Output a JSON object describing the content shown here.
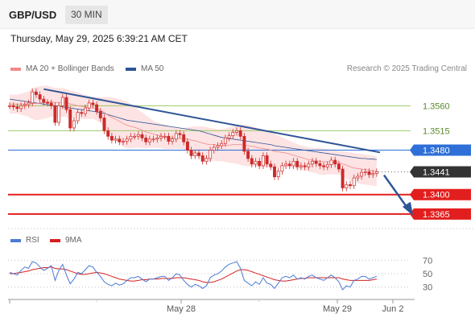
{
  "header": {
    "pair": "GBP/USD",
    "timeframe": "30 MIN",
    "datetime": "Thursday, May 29, 2025 6:39:21 AM CET",
    "copyright": "Research © 2025 Trading Central"
  },
  "legend": {
    "ma20": "MA 20 + Bollinger Bands",
    "ma50": "MA 50",
    "rsi": "RSI",
    "ma9": "9MA"
  },
  "colors": {
    "ma20": "#f08a8a",
    "ma50": "#2f5597",
    "bollinger_fill": "#fde3e3",
    "candle": "#cc2a2a",
    "resistance": "#99cc66",
    "pivot": "#2e6fd8",
    "support": "#e31e1e",
    "trendline": "#2f5597",
    "rsi": "#4a7bd6",
    "rsi_ma": "#d42020"
  },
  "chart_data": [
    {
      "type": "line",
      "title": "GBP/USD 30 MIN",
      "x_labels": [
        "May 28",
        "May 29",
        "Jun 2"
      ],
      "y_range": [
        1.333,
        1.362
      ],
      "last_price": 1.3441,
      "levels": [
        {
          "value": 1.356,
          "label": "1.3560",
          "kind": "resistance"
        },
        {
          "value": 1.3515,
          "label": "1.3515",
          "kind": "resistance"
        },
        {
          "value": 1.348,
          "label": "1.3480",
          "kind": "pivot"
        },
        {
          "value": 1.3441,
          "label": "1.3441",
          "kind": "last"
        },
        {
          "value": 1.34,
          "label": "1.3400",
          "kind": "support"
        },
        {
          "value": 1.3365,
          "label": "1.3365",
          "kind": "support"
        }
      ],
      "close": [
        1.356,
        1.3558,
        1.3555,
        1.356,
        1.3562,
        1.3565,
        1.3585,
        1.358,
        1.3572,
        1.3566,
        1.3565,
        1.356,
        1.353,
        1.356,
        1.3575,
        1.3553,
        1.352,
        1.3533,
        1.3548,
        1.3546,
        1.3556,
        1.3565,
        1.3562,
        1.355,
        1.3538,
        1.3515,
        1.3505,
        1.3498,
        1.35,
        1.3495,
        1.3496,
        1.35,
        1.3505,
        1.3505,
        1.3508,
        1.3502,
        1.3495,
        1.35,
        1.35,
        1.3502,
        1.3505,
        1.3505,
        1.3496,
        1.35,
        1.351,
        1.3508,
        1.3495,
        1.348,
        1.347,
        1.3475,
        1.347,
        1.346,
        1.3465,
        1.348,
        1.3485,
        1.3488,
        1.3492,
        1.3502,
        1.3506,
        1.3512,
        1.3515,
        1.3505,
        1.3478,
        1.3465,
        1.3455,
        1.346,
        1.3452,
        1.347,
        1.3455,
        1.345,
        1.3432,
        1.3442,
        1.3452,
        1.3455,
        1.3452,
        1.346,
        1.345,
        1.3452,
        1.345,
        1.3455,
        1.346,
        1.3456,
        1.3452,
        1.345,
        1.3454,
        1.3462,
        1.3455,
        1.3446,
        1.3412,
        1.3418,
        1.3416,
        1.343,
        1.3433,
        1.344,
        1.3441,
        1.3436,
        1.3438,
        1.3441
      ],
      "ma20": [
        1.3563,
        1.3563,
        1.3563,
        1.3563,
        1.3563,
        1.3563,
        1.3564,
        1.3564,
        1.3565,
        1.3566,
        1.3567,
        1.3567,
        1.3566,
        1.3566,
        1.3566,
        1.3565,
        1.3563,
        1.3562,
        1.356,
        1.3559,
        1.3558,
        1.3557,
        1.3556,
        1.3554,
        1.3552,
        1.3548,
        1.3543,
        1.3539,
        1.3536,
        1.3532,
        1.3528,
        1.3525,
        1.3523,
        1.3521,
        1.3519,
        1.3516,
        1.3513,
        1.3511,
        1.3509,
        1.3507,
        1.3506,
        1.3504,
        1.3503,
        1.3502,
        1.3502,
        1.3501,
        1.3501,
        1.35,
        1.3498,
        1.3497,
        1.3495,
        1.3493,
        1.3491,
        1.349,
        1.349,
        1.3489,
        1.3489,
        1.3489,
        1.3489,
        1.349,
        1.349,
        1.349,
        1.3489,
        1.3488,
        1.3487,
        1.3486,
        1.3484,
        1.3483,
        1.3482,
        1.348,
        1.3478,
        1.3477,
        1.3476,
        1.3475,
        1.3473,
        1.3471,
        1.3469,
        1.3467,
        1.3465,
        1.3463,
        1.3462,
        1.3461,
        1.346,
        1.3459,
        1.3459,
        1.3459,
        1.3458,
        1.3457,
        1.3455,
        1.3453,
        1.345,
        1.3448,
        1.3447,
        1.3446,
        1.3445,
        1.3444,
        1.3443,
        1.3442
      ],
      "bb_upper": [
        1.358,
        1.358,
        1.358,
        1.3582,
        1.3584,
        1.3586,
        1.3592,
        1.3594,
        1.3595,
        1.3596,
        1.3596,
        1.3594,
        1.3592,
        1.3592,
        1.3592,
        1.359,
        1.3588,
        1.3586,
        1.3584,
        1.3582,
        1.358,
        1.3578,
        1.3576,
        1.3575,
        1.3575,
        1.3576,
        1.3576,
        1.3575,
        1.3574,
        1.3572,
        1.357,
        1.3567,
        1.3563,
        1.3558,
        1.3553,
        1.3548,
        1.3543,
        1.3538,
        1.3533,
        1.353,
        1.3528,
        1.3526,
        1.3524,
        1.3522,
        1.3521,
        1.352,
        1.352,
        1.3521,
        1.3522,
        1.3523,
        1.3523,
        1.3523,
        1.3522,
        1.352,
        1.3519,
        1.3518,
        1.3518,
        1.3519,
        1.3521,
        1.3523,
        1.3525,
        1.3526,
        1.3526,
        1.3525,
        1.3523,
        1.3521,
        1.3519,
        1.3517,
        1.3515,
        1.3512,
        1.3509,
        1.3506,
        1.3503,
        1.35,
        1.3497,
        1.3494,
        1.3491,
        1.3489,
        1.3487,
        1.3485,
        1.3484,
        1.3484,
        1.3484,
        1.3483,
        1.3482,
        1.3481,
        1.348,
        1.3478,
        1.3478,
        1.3477,
        1.3476,
        1.3475,
        1.3474,
        1.3473,
        1.3472,
        1.3471,
        1.347,
        1.3469
      ],
      "bb_lower": [
        1.3546,
        1.3546,
        1.3546,
        1.3544,
        1.3542,
        1.354,
        1.3536,
        1.3534,
        1.3535,
        1.3536,
        1.3538,
        1.354,
        1.354,
        1.354,
        1.354,
        1.354,
        1.3538,
        1.3538,
        1.3536,
        1.3536,
        1.3536,
        1.3536,
        1.3536,
        1.3533,
        1.3529,
        1.352,
        1.351,
        1.3503,
        1.3498,
        1.3492,
        1.3486,
        1.3483,
        1.3483,
        1.3484,
        1.3485,
        1.3484,
        1.3483,
        1.3484,
        1.3485,
        1.3484,
        1.3484,
        1.3482,
        1.3482,
        1.3482,
        1.3483,
        1.3482,
        1.3482,
        1.3479,
        1.3474,
        1.3471,
        1.3467,
        1.3463,
        1.346,
        1.346,
        1.3461,
        1.346,
        1.346,
        1.3459,
        1.3457,
        1.3457,
        1.3455,
        1.3454,
        1.3452,
        1.3451,
        1.3451,
        1.3451,
        1.3449,
        1.3449,
        1.3449,
        1.3448,
        1.3447,
        1.3448,
        1.3449,
        1.345,
        1.3449,
        1.3448,
        1.3447,
        1.3445,
        1.3443,
        1.3441,
        1.344,
        1.3438,
        1.3436,
        1.3435,
        1.3436,
        1.3437,
        1.3436,
        1.3436,
        1.3432,
        1.3429,
        1.3424,
        1.3421,
        1.342,
        1.3419,
        1.3418,
        1.3417,
        1.3416,
        1.3415
      ],
      "ma50": [
        1.3572,
        1.3571,
        1.357,
        1.3569,
        1.3568,
        1.3567,
        1.3566,
        1.3565,
        1.3564,
        1.3563,
        1.3562,
        1.3561,
        1.356,
        1.3559,
        1.3558,
        1.3557,
        1.3556,
        1.3555,
        1.3554,
        1.3553,
        1.3552,
        1.3551,
        1.355,
        1.3549,
        1.3548,
        1.3546,
        1.3544,
        1.3542,
        1.354,
        1.3538,
        1.3536,
        1.3534,
        1.3533,
        1.3532,
        1.3531,
        1.353,
        1.3529,
        1.3528,
        1.3527,
        1.3526,
        1.3525,
        1.3524,
        1.3523,
        1.3522,
        1.3521,
        1.352,
        1.3519,
        1.3518,
        1.3517,
        1.3516,
        1.3515,
        1.3513,
        1.3511,
        1.3509,
        1.3507,
        1.3505,
        1.3503,
        1.3502,
        1.3501,
        1.35,
        1.3499,
        1.3498,
        1.3497,
        1.3496,
        1.3495,
        1.3494,
        1.3493,
        1.3492,
        1.3491,
        1.349,
        1.3488,
        1.3487,
        1.3486,
        1.3485,
        1.3484,
        1.3483,
        1.3482,
        1.3481,
        1.348,
        1.3479,
        1.3478,
        1.3477,
        1.3476,
        1.3475,
        1.3474,
        1.3473,
        1.3472,
        1.3471,
        1.347,
        1.3469,
        1.3468,
        1.3467,
        1.3466,
        1.3465,
        1.3465,
        1.3464,
        1.3464,
        1.3463
      ]
    },
    {
      "type": "line",
      "title": "RSI",
      "y_ticks": [
        70,
        50,
        30
      ],
      "y_range": [
        20,
        80
      ],
      "series": [
        {
          "name": "RSI",
          "values": [
            52,
            50,
            48,
            55,
            60,
            58,
            68,
            66,
            60,
            55,
            58,
            62,
            40,
            55,
            64,
            48,
            35,
            42,
            52,
            50,
            56,
            62,
            60,
            52,
            46,
            38,
            34,
            32,
            36,
            33,
            35,
            40,
            44,
            44,
            46,
            42,
            38,
            42,
            42,
            44,
            46,
            46,
            40,
            44,
            50,
            48,
            40,
            34,
            30,
            34,
            32,
            28,
            32,
            44,
            48,
            50,
            54,
            60,
            64,
            66,
            68,
            58,
            40,
            36,
            32,
            38,
            34,
            44,
            36,
            34,
            28,
            36,
            44,
            46,
            44,
            48,
            42,
            44,
            42,
            46,
            48,
            44,
            42,
            40,
            44,
            48,
            44,
            38,
            26,
            32,
            30,
            40,
            42,
            46,
            46,
            42,
            44,
            46
          ]
        },
        {
          "name": "9MA",
          "values": [
            50,
            50,
            51,
            52,
            53,
            54,
            56,
            57,
            58,
            59,
            59,
            60,
            58,
            57,
            57,
            56,
            54,
            52,
            50,
            49,
            49,
            50,
            51,
            52,
            51,
            50,
            48,
            46,
            44,
            42,
            41,
            40,
            39,
            39,
            40,
            41,
            41,
            42,
            42,
            42,
            43,
            43,
            43,
            43,
            44,
            44,
            44,
            43,
            42,
            41,
            40,
            38,
            37,
            37,
            38,
            40,
            42,
            45,
            48,
            51,
            54,
            56,
            56,
            55,
            53,
            51,
            49,
            47,
            45,
            43,
            41,
            40,
            39,
            39,
            40,
            41,
            42,
            43,
            43,
            44,
            44,
            44,
            44,
            44,
            44,
            44,
            44,
            44,
            42,
            41,
            40,
            40,
            40,
            40,
            40,
            40,
            41,
            42
          ]
        }
      ]
    }
  ]
}
